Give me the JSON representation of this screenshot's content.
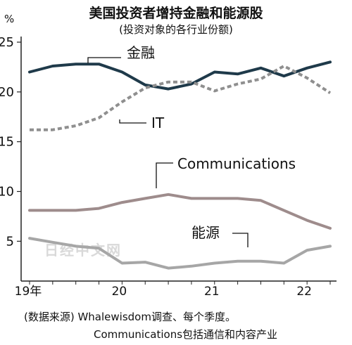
{
  "header": {
    "title": "美国投资者增持金融和能源股",
    "subtitle": "(投资对象的各行业份额)",
    "unit": "%"
  },
  "notes": {
    "source": "(数据来源) Whalewisdom调查、每个季度。",
    "definition": "Communications包括通信和内容产业"
  },
  "watermark": "日经中文网",
  "colors": {
    "finance": "#1f3a4a",
    "it": "#8f8f8f",
    "communications": "#9e8c8c",
    "energy": "#a6a6a6"
  },
  "chart_data": {
    "type": "line",
    "x": [
      "2019Q1",
      "2019Q2",
      "2019Q3",
      "2019Q4",
      "2020Q1",
      "2020Q2",
      "2020Q3",
      "2020Q4",
      "2021Q1",
      "2021Q2",
      "2021Q3",
      "2021Q4",
      "2022Q1",
      "2022Q2"
    ],
    "x_tick_labels": [
      {
        "label": "19年",
        "index": 0
      },
      {
        "label": "20",
        "index": 4
      },
      {
        "label": "21",
        "index": 8
      },
      {
        "label": "22",
        "index": 12
      }
    ],
    "y_ticks": [
      5,
      10,
      15,
      20,
      25
    ],
    "ylim": [
      1,
      25
    ],
    "grid": false,
    "series": [
      {
        "name": "金融",
        "key": "finance",
        "style": "solid",
        "values": [
          22.0,
          22.6,
          22.8,
          22.8,
          22.0,
          20.7,
          20.3,
          20.8,
          22.0,
          21.8,
          22.4,
          21.6,
          22.4,
          23.0
        ]
      },
      {
        "name": "IT",
        "key": "it",
        "style": "dashed",
        "values": [
          16.2,
          16.2,
          16.6,
          17.4,
          19.0,
          20.4,
          21.0,
          21.0,
          20.1,
          20.8,
          21.3,
          22.6,
          21.4,
          19.9
        ]
      },
      {
        "name": "Communications",
        "key": "communications",
        "style": "solid",
        "values": [
          8.1,
          8.1,
          8.1,
          8.3,
          8.9,
          9.3,
          9.7,
          9.3,
          9.3,
          9.3,
          9.1,
          8.1,
          7.1,
          6.3
        ]
      },
      {
        "name": "能源",
        "key": "energy",
        "style": "solid",
        "values": [
          5.3,
          4.9,
          4.5,
          4.3,
          2.8,
          2.9,
          2.3,
          2.5,
          2.8,
          3.0,
          3.0,
          2.8,
          4.1,
          4.5
        ]
      }
    ]
  }
}
